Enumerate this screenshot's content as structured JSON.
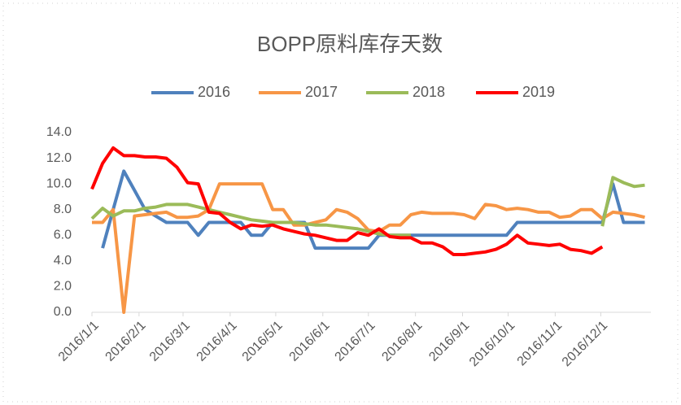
{
  "chart_data": {
    "type": "line",
    "title": "BOPP原料库存天数",
    "x": [
      0,
      7,
      14,
      21,
      28,
      35,
      42,
      49,
      56,
      63,
      70,
      77,
      84,
      91,
      98,
      105,
      112,
      119,
      126,
      133,
      140,
      147,
      154,
      161,
      168,
      175,
      182,
      189,
      196,
      203,
      210,
      217,
      224,
      231,
      238,
      245,
      252,
      259,
      266,
      273,
      280,
      287,
      294,
      301,
      308,
      315,
      322,
      329,
      336,
      343,
      350,
      357,
      364
    ],
    "xlim": [
      0,
      368
    ],
    "xticks": [
      {
        "value": 0,
        "label": "2016/1/1"
      },
      {
        "value": 31,
        "label": "2016/2/1"
      },
      {
        "value": 60,
        "label": "2016/3/1"
      },
      {
        "value": 91,
        "label": "2016/4/1"
      },
      {
        "value": 121,
        "label": "2016/5/1"
      },
      {
        "value": 152,
        "label": "2016/6/1"
      },
      {
        "value": 182,
        "label": "2016/7/1"
      },
      {
        "value": 213,
        "label": "2016/8/1"
      },
      {
        "value": 244,
        "label": "2016/9/1"
      },
      {
        "value": 274,
        "label": "2016/10/1"
      },
      {
        "value": 305,
        "label": "2016/11/1"
      },
      {
        "value": 335,
        "label": "2016/12/1"
      }
    ],
    "ylim": [
      0,
      14
    ],
    "yticks": [
      {
        "value": 0,
        "label": "0.0"
      },
      {
        "value": 2,
        "label": "2.0"
      },
      {
        "value": 4,
        "label": "4.0"
      },
      {
        "value": 6,
        "label": "6.0"
      },
      {
        "value": 8,
        "label": "8.0"
      },
      {
        "value": 10,
        "label": "10.0"
      },
      {
        "value": 12,
        "label": "12.0"
      },
      {
        "value": 14,
        "label": "14.0"
      }
    ],
    "legend": "top",
    "series": [
      {
        "name": "2016",
        "color": "#4f81bd",
        "values": [
          null,
          5.0,
          8.0,
          11.0,
          9.5,
          8.0,
          7.5,
          7.0,
          7.0,
          7.0,
          6.0,
          7.0,
          7.0,
          7.0,
          7.0,
          6.0,
          6.0,
          7.0,
          7.0,
          7.0,
          7.0,
          5.0,
          5.0,
          5.0,
          5.0,
          5.0,
          5.0,
          6.0,
          6.0,
          6.0,
          6.0,
          6.0,
          6.0,
          6.0,
          6.0,
          6.0,
          6.0,
          6.0,
          6.0,
          6.0,
          7.0,
          7.0,
          7.0,
          7.0,
          7.0,
          7.0,
          7.0,
          7.0,
          7.0,
          10.0,
          7.0,
          7.0,
          7.0
        ]
      },
      {
        "name": "2017",
        "color": "#f79646",
        "values": [
          7.0,
          7.0,
          8.0,
          0.0,
          7.5,
          7.6,
          7.7,
          7.8,
          7.4,
          7.4,
          7.5,
          8.0,
          10.0,
          10.0,
          10.0,
          10.0,
          10.0,
          8.0,
          8.0,
          6.8,
          6.8,
          7.0,
          7.2,
          8.0,
          7.8,
          7.3,
          6.4,
          6.3,
          6.8,
          6.8,
          7.6,
          7.8,
          7.7,
          7.7,
          7.7,
          7.6,
          7.3,
          8.4,
          8.3,
          8.0,
          8.1,
          8.0,
          7.8,
          7.8,
          7.4,
          7.5,
          8.0,
          8.0,
          7.3,
          7.8,
          7.7,
          7.6,
          7.4
        ]
      },
      {
        "name": "2018",
        "color": "#9bbb59",
        "values": [
          7.3,
          8.1,
          7.5,
          7.9,
          7.9,
          8.1,
          8.2,
          8.4,
          8.4,
          8.4,
          8.2,
          8.0,
          7.8,
          7.6,
          7.4,
          7.2,
          7.1,
          7.0,
          7.0,
          7.0,
          6.9,
          6.8,
          6.8,
          6.7,
          6.6,
          6.5,
          6.3,
          6.1,
          6.0,
          6.0,
          6.0,
          null,
          null,
          null,
          null,
          null,
          null,
          null,
          null,
          null,
          null,
          null,
          null,
          null,
          null,
          null,
          null,
          null,
          6.7,
          10.5,
          10.1,
          9.8,
          9.9
        ]
      },
      {
        "name": "2019",
        "color": "#ff0000",
        "values": [
          9.6,
          11.6,
          12.8,
          12.2,
          12.2,
          12.1,
          12.1,
          12.0,
          11.3,
          10.1,
          10.0,
          7.8,
          7.7,
          7.0,
          6.5,
          6.8,
          6.7,
          6.8,
          6.5,
          6.3,
          6.1,
          6.0,
          5.8,
          5.6,
          5.6,
          6.2,
          6.0,
          6.5,
          5.9,
          5.8,
          5.8,
          5.4,
          5.4,
          5.1,
          4.5,
          4.5,
          4.6,
          4.7,
          4.9,
          5.3,
          6.0,
          5.4,
          5.3,
          5.2,
          5.3,
          4.9,
          4.8,
          4.6,
          5.1,
          null,
          null,
          null,
          null
        ]
      }
    ]
  }
}
